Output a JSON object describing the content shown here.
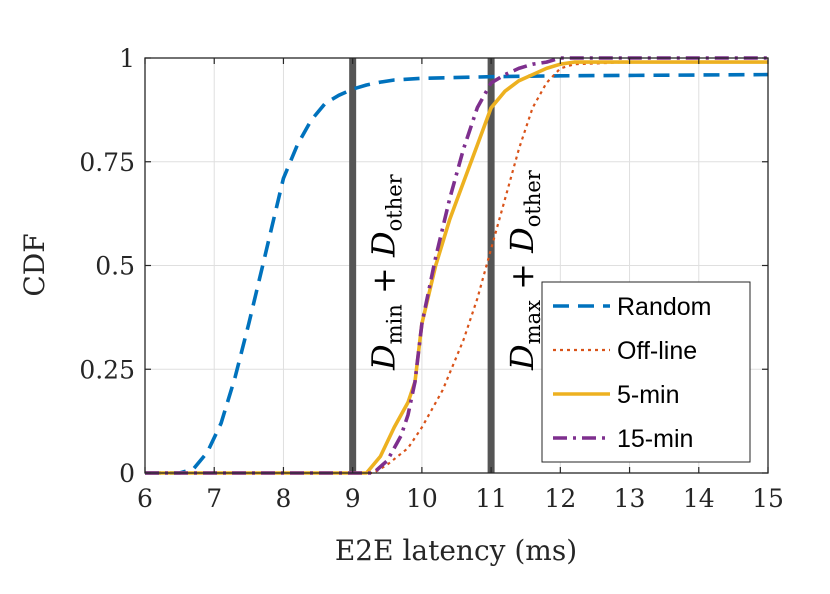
{
  "chart_data": {
    "type": "line",
    "title": "",
    "xlabel": "E2E latency (ms)",
    "ylabel": "CDF",
    "xlim": [
      6,
      15
    ],
    "ylim": [
      0,
      1
    ],
    "xticks": [
      6,
      7,
      8,
      9,
      10,
      11,
      12,
      13,
      14,
      15
    ],
    "yticks": [
      0,
      0.25,
      0.5,
      0.75,
      1
    ],
    "xtick_labels": [
      "6",
      "7",
      "8",
      "9",
      "10",
      "11",
      "12",
      "13",
      "14",
      "15"
    ],
    "ytick_labels": [
      "0",
      "0.25",
      "0.5",
      "0.75",
      "1"
    ],
    "grid": true,
    "legend_position": "bottom-right",
    "series": [
      {
        "name": "Random",
        "color": "#0072BD",
        "style": "dashed",
        "x": [
          6.0,
          6.5,
          6.7,
          6.9,
          7.1,
          7.3,
          7.5,
          7.7,
          7.9,
          8.0,
          8.2,
          8.4,
          8.6,
          8.8,
          9.0,
          9.2,
          9.4,
          9.6,
          10.0,
          11.0,
          12.0,
          13.0,
          14.0,
          15.0
        ],
        "values": [
          0.0,
          0.0,
          0.01,
          0.05,
          0.12,
          0.23,
          0.36,
          0.5,
          0.64,
          0.71,
          0.79,
          0.85,
          0.89,
          0.91,
          0.925,
          0.935,
          0.942,
          0.947,
          0.951,
          0.955,
          0.957,
          0.958,
          0.959,
          0.96
        ]
      },
      {
        "name": "Off-line",
        "color": "#D95319",
        "style": "dotted",
        "x": [
          6.0,
          9.3,
          9.5,
          9.8,
          10.0,
          10.3,
          10.6,
          10.8,
          11.0,
          11.2,
          11.4,
          11.6,
          11.8,
          12.0,
          12.2,
          13.0,
          15.0
        ],
        "values": [
          0.0,
          0.0,
          0.02,
          0.06,
          0.11,
          0.2,
          0.32,
          0.42,
          0.54,
          0.66,
          0.78,
          0.88,
          0.94,
          0.975,
          0.985,
          0.99,
          0.99
        ]
      },
      {
        "name": "5-min",
        "color": "#EDB120",
        "style": "solid",
        "x": [
          6.0,
          9.2,
          9.4,
          9.6,
          9.8,
          9.9,
          10.0,
          10.2,
          10.4,
          10.6,
          10.8,
          11.0,
          11.2,
          11.4,
          11.6,
          11.8,
          12.0,
          12.2,
          13.0,
          15.0
        ],
        "values": [
          0.0,
          0.0,
          0.04,
          0.11,
          0.17,
          0.22,
          0.36,
          0.5,
          0.61,
          0.7,
          0.79,
          0.88,
          0.92,
          0.945,
          0.96,
          0.975,
          0.985,
          0.99,
          0.99,
          0.99
        ]
      },
      {
        "name": "15-min",
        "color": "#7E2F8E",
        "style": "dashdot",
        "x": [
          6.0,
          9.3,
          9.5,
          9.7,
          9.8,
          9.9,
          10.0,
          10.2,
          10.4,
          10.6,
          10.8,
          11.0,
          11.2,
          11.4,
          11.6,
          11.8,
          12.0,
          13.0,
          15.0
        ],
        "values": [
          0.0,
          0.0,
          0.03,
          0.09,
          0.14,
          0.22,
          0.36,
          0.52,
          0.66,
          0.78,
          0.88,
          0.94,
          0.96,
          0.975,
          0.985,
          0.99,
          1.0,
          1.0,
          1.0
        ]
      }
    ],
    "vertical_lines": [
      {
        "x": 9,
        "color": "#555555",
        "label_main": "D",
        "label_sub": "min",
        "label_plus": "+",
        "label_main2": "D",
        "label_sub2": "other"
      },
      {
        "x": 11,
        "color": "#555555",
        "label_main": "D",
        "label_sub": "max",
        "label_plus": "+",
        "label_main2": "D",
        "label_sub2": "other"
      }
    ]
  }
}
